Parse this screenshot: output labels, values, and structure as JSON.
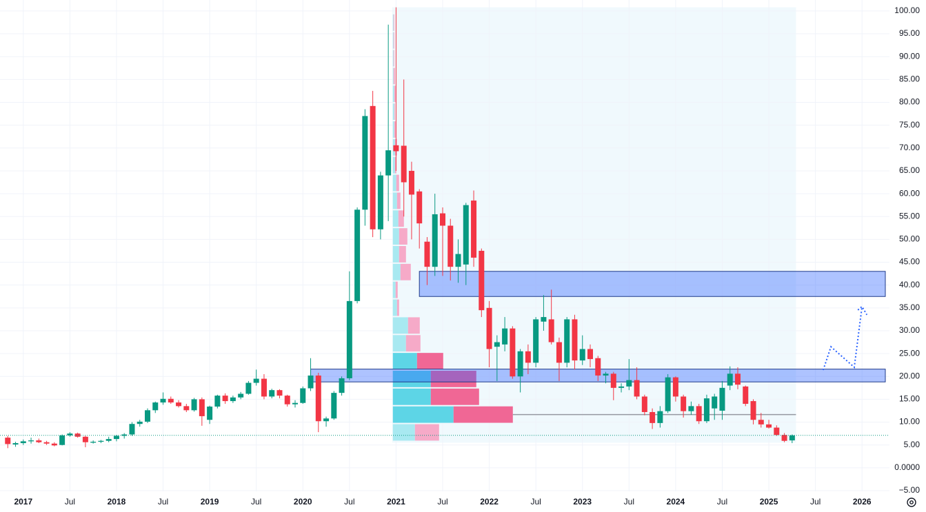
{
  "chart_data": {
    "type": "candlestick",
    "x": [
      "2016-11",
      "2016-12",
      "2017-01",
      "2017-02",
      "2017-03",
      "2017-04",
      "2017-05",
      "2017-06",
      "2017-07",
      "2017-08",
      "2017-09",
      "2017-10",
      "2017-11",
      "2017-12",
      "2018-01",
      "2018-02",
      "2018-03",
      "2018-04",
      "2018-05",
      "2018-06",
      "2018-07",
      "2018-08",
      "2018-09",
      "2018-10",
      "2018-11",
      "2018-12",
      "2019-01",
      "2019-02",
      "2019-03",
      "2019-04",
      "2019-05",
      "2019-06",
      "2019-07",
      "2019-08",
      "2019-09",
      "2019-10",
      "2019-11",
      "2019-12",
      "2020-01",
      "2020-02",
      "2020-03",
      "2020-04",
      "2020-05",
      "2020-06",
      "2020-07",
      "2020-08",
      "2020-09",
      "2020-10",
      "2020-11",
      "2020-12",
      "2021-01",
      "2021-02",
      "2021-03",
      "2021-04",
      "2021-05",
      "2021-06",
      "2021-07",
      "2021-08",
      "2021-09",
      "2021-10",
      "2021-11",
      "2021-12",
      "2022-01",
      "2022-02",
      "2022-03",
      "2022-04",
      "2022-05",
      "2022-06",
      "2022-07",
      "2022-08",
      "2022-09",
      "2022-10",
      "2022-11",
      "2022-12",
      "2023-01",
      "2023-02",
      "2023-03",
      "2023-04",
      "2023-05",
      "2023-06",
      "2023-07",
      "2023-08",
      "2023-09",
      "2023-10",
      "2023-11",
      "2023-12",
      "2024-01",
      "2024-02",
      "2024-03",
      "2024-04",
      "2024-05",
      "2024-06",
      "2024-07",
      "2024-08",
      "2024-09",
      "2024-10",
      "2024-11",
      "2024-12",
      "2025-01",
      "2025-02",
      "2025-03",
      "2025-04"
    ],
    "open": [
      6.6,
      5.1,
      5.4,
      5.8,
      6.0,
      5.6,
      5.3,
      5.0,
      7.1,
      7.5,
      6.8,
      5.5,
      5.7,
      5.9,
      6.3,
      7.0,
      7.3,
      9.6,
      10.1,
      12.6,
      14.3,
      15.1,
      14.3,
      13.5,
      12.6,
      15.0,
      10.5,
      13.4,
      15.8,
      14.6,
      15.4,
      16.2,
      18.6,
      19.5,
      15.6,
      17.0,
      15.8,
      13.9,
      14.2,
      17.4,
      20.2,
      10.2,
      10.8,
      16.4,
      19.6,
      36.5,
      56.5,
      79.2,
      52.2,
      64.0,
      70.6,
      70.5,
      65.0,
      60.5,
      49.5,
      44.0,
      55.7,
      53.0,
      44.0,
      44.5,
      58.5,
      47.5,
      35.0,
      26.5,
      27.0,
      30.5,
      20.0,
      25.5,
      23.0,
      32.0,
      32.5,
      27.5,
      23.0,
      32.5,
      23.5,
      26.0,
      24.0,
      20.2,
      20.6,
      17.5,
      17.8,
      19.2,
      15.6,
      12.2,
      9.8,
      12.4,
      19.8,
      15.6,
      12.4,
      13.5,
      10.2,
      13.0,
      12.5,
      18.0,
      20.6,
      17.8,
      14.6,
      10.5,
      9.5,
      8.8,
      7.2,
      6.0
    ],
    "high": [
      7.0,
      5.7,
      6.2,
      6.6,
      6.4,
      5.9,
      5.6,
      7.3,
      7.8,
      7.7,
      7.0,
      6.0,
      6.1,
      6.8,
      7.2,
      7.6,
      10.0,
      10.5,
      13.0,
      14.5,
      16.5,
      15.6,
      14.8,
      14.0,
      15.3,
      15.4,
      13.6,
      16.0,
      16.3,
      15.8,
      16.6,
      19.0,
      21.5,
      20.5,
      17.3,
      17.2,
      16.0,
      14.8,
      17.8,
      24.0,
      20.8,
      11.2,
      16.8,
      20.0,
      43.0,
      57.0,
      78.5,
      82.5,
      64.8,
      97.0,
      100.8,
      85.0,
      67.0,
      61.0,
      50.5,
      60.0,
      57.0,
      54.5,
      50.0,
      58.0,
      60.7,
      48.0,
      36.5,
      29.0,
      33.0,
      31.0,
      26.0,
      27.0,
      33.0,
      37.8,
      39.0,
      28.5,
      33.0,
      33.5,
      29.0,
      27.0,
      24.5,
      21.0,
      21.0,
      18.5,
      23.8,
      22.0,
      16.0,
      13.0,
      13.5,
      20.5,
      20.0,
      16.0,
      14.5,
      14.0,
      16.0,
      16.2,
      19.0,
      22.2,
      22.0,
      18.0,
      15.0,
      12.0,
      10.5,
      9.3,
      7.6,
      7.3
    ],
    "low": [
      4.3,
      4.6,
      5.0,
      5.3,
      5.4,
      5.0,
      4.7,
      4.9,
      6.8,
      6.6,
      4.5,
      5.3,
      5.4,
      5.6,
      5.8,
      6.4,
      7.0,
      9.0,
      9.8,
      12.0,
      13.8,
      14.0,
      13.2,
      12.2,
      12.3,
      9.2,
      9.6,
      13.0,
      14.0,
      14.2,
      15.0,
      16.0,
      18.0,
      15.0,
      15.2,
      15.2,
      13.4,
      13.2,
      14.0,
      16.8,
      7.8,
      9.0,
      10.5,
      15.8,
      19.2,
      36.0,
      53.0,
      50.5,
      50.0,
      54.0,
      65.0,
      55.0,
      50.0,
      48.0,
      40.0,
      42.0,
      42.0,
      41.0,
      40.5,
      40.0,
      44.0,
      33.0,
      22.0,
      19.0,
      25.5,
      19.5,
      16.5,
      20.5,
      22.0,
      30.0,
      27.0,
      19.0,
      22.0,
      21.5,
      22.5,
      22.0,
      19.0,
      18.5,
      14.8,
      16.5,
      17.0,
      15.0,
      11.5,
      8.5,
      8.8,
      12.0,
      14.5,
      11.0,
      11.6,
      9.6,
      9.8,
      10.5,
      10.5,
      17.0,
      17.2,
      13.5,
      9.5,
      8.8,
      8.6,
      7.0,
      5.6,
      5.4
    ],
    "close": [
      5.2,
      5.4,
      5.8,
      6.0,
      5.6,
      5.3,
      4.9,
      7.1,
      7.5,
      6.8,
      5.6,
      5.7,
      5.9,
      6.3,
      7.0,
      7.3,
      9.6,
      10.1,
      12.6,
      14.3,
      15.1,
      14.3,
      13.5,
      12.6,
      15.0,
      11.3,
      13.4,
      15.8,
      14.6,
      15.4,
      16.2,
      18.6,
      19.5,
      15.6,
      17.0,
      15.8,
      13.9,
      14.2,
      17.4,
      20.2,
      10.2,
      10.8,
      16.4,
      19.6,
      36.5,
      56.5,
      77.0,
      52.2,
      64.0,
      69.5,
      69.3,
      62.5,
      59.8,
      53.5,
      44.0,
      55.5,
      53.0,
      44.0,
      46.8,
      57.5,
      46.0,
      34.5,
      26.0,
      27.5,
      30.5,
      20.0,
      25.5,
      23.0,
      32.5,
      33.0,
      27.5,
      23.0,
      32.5,
      23.5,
      26.0,
      23.8,
      20.2,
      20.6,
      17.5,
      17.8,
      19.2,
      15.6,
      12.2,
      9.8,
      12.4,
      19.8,
      15.6,
      12.4,
      13.5,
      10.2,
      15.2,
      15.6,
      17.5,
      20.6,
      18.2,
      14.0,
      10.5,
      9.5,
      8.8,
      7.2,
      5.9,
      7.1
    ],
    "up_color": "#089981",
    "down_color": "#f23645",
    "xlim": [
      "2016-10",
      "2026-04"
    ],
    "xticks": [
      {
        "value": "2017-01",
        "label": "2017"
      },
      {
        "value": "2017-07",
        "label": "Jul"
      },
      {
        "value": "2018-01",
        "label": "2018"
      },
      {
        "value": "2018-07",
        "label": "Jul"
      },
      {
        "value": "2019-01",
        "label": "2019"
      },
      {
        "value": "2019-07",
        "label": "Jul"
      },
      {
        "value": "2020-01",
        "label": "2020"
      },
      {
        "value": "2020-07",
        "label": "Jul"
      },
      {
        "value": "2021-01",
        "label": "2021"
      },
      {
        "value": "2021-07",
        "label": "Jul"
      },
      {
        "value": "2022-01",
        "label": "2022"
      },
      {
        "value": "2022-07",
        "label": "Jul"
      },
      {
        "value": "2023-01",
        "label": "2023"
      },
      {
        "value": "2023-07",
        "label": "Jul"
      },
      {
        "value": "2024-01",
        "label": "2024"
      },
      {
        "value": "2024-07",
        "label": "Jul"
      },
      {
        "value": "2025-01",
        "label": "2025"
      },
      {
        "value": "2025-07",
        "label": "Jul"
      },
      {
        "value": "2026-01",
        "label": "2026"
      }
    ],
    "ylim": [
      -5.15,
      102.4
    ],
    "yticks": [
      {
        "value": 100,
        "label": "100.00"
      },
      {
        "value": 95,
        "label": "95.00"
      },
      {
        "value": 90,
        "label": "90.00"
      },
      {
        "value": 85,
        "label": "85.00"
      },
      {
        "value": 80,
        "label": "80.00"
      },
      {
        "value": 75,
        "label": "75.00"
      },
      {
        "value": 70,
        "label": "70.00"
      },
      {
        "value": 65,
        "label": "65.00"
      },
      {
        "value": 60,
        "label": "60.00"
      },
      {
        "value": 55,
        "label": "55.00"
      },
      {
        "value": 50,
        "label": "50.00"
      },
      {
        "value": 45,
        "label": "45.00"
      },
      {
        "value": 40,
        "label": "40.00"
      },
      {
        "value": 35,
        "label": "35.00"
      },
      {
        "value": 30,
        "label": "30.00"
      },
      {
        "value": 25,
        "label": "25.00"
      },
      {
        "value": 20,
        "label": "20.00"
      },
      {
        "value": 15,
        "label": "15.00"
      },
      {
        "value": 10,
        "label": "10.00"
      },
      {
        "value": 5,
        "label": "5.00"
      },
      {
        "value": 0,
        "label": "0.0000"
      },
      {
        "value": -5,
        "label": "−5.00"
      }
    ],
    "grid": true,
    "grid_color": "#f0f3fa",
    "range_box": {
      "start": "2021-01",
      "end": "2025-04",
      "low": 5.5,
      "high": 100.8,
      "color": "#e3f4fb"
    },
    "volume_profile": {
      "buy_color": "#5dd5e6",
      "sell_color": "#f06795",
      "buy_light_color": "#a8e9f1",
      "sell_light_color": "#f6aac8",
      "poc_color": "#9598a1",
      "value_area": [
        9.7,
        25.3
      ],
      "rows": [
        {
          "low": 5.8,
          "high": 9.7,
          "buy": 32,
          "sell": 35
        },
        {
          "low": 9.7,
          "high": 13.6,
          "buy": 88,
          "sell": 86
        },
        {
          "low": 13.6,
          "high": 17.5,
          "buy": 55,
          "sell": 70
        },
        {
          "low": 17.5,
          "high": 21.4,
          "buy": 55,
          "sell": 66
        },
        {
          "low": 21.4,
          "high": 25.3,
          "buy": 35,
          "sell": 38
        },
        {
          "low": 25.3,
          "high": 29.2,
          "buy": 19,
          "sell": 21
        },
        {
          "low": 29.2,
          "high": 33.1,
          "buy": 22,
          "sell": 17
        },
        {
          "low": 33.1,
          "high": 37.0,
          "buy": 6,
          "sell": 3
        },
        {
          "low": 37.0,
          "high": 40.9,
          "buy": 4,
          "sell": 3
        },
        {
          "low": 40.9,
          "high": 44.8,
          "buy": 11,
          "sell": 15
        },
        {
          "low": 44.8,
          "high": 48.7,
          "buy": 9,
          "sell": 10
        },
        {
          "low": 48.7,
          "high": 52.6,
          "buy": 9,
          "sell": 12
        },
        {
          "low": 52.6,
          "high": 56.5,
          "buy": 8,
          "sell": 8
        },
        {
          "low": 56.5,
          "high": 60.4,
          "buy": 6,
          "sell": 5
        },
        {
          "low": 60.4,
          "high": 64.3,
          "buy": 5,
          "sell": 4
        },
        {
          "low": 64.3,
          "high": 68.2,
          "buy": 3,
          "sell": 2
        },
        {
          "low": 68.2,
          "high": 72.1,
          "buy": 3,
          "sell": 3
        },
        {
          "low": 72.1,
          "high": 76.0,
          "buy": 2,
          "sell": 2
        },
        {
          "low": 76.0,
          "high": 79.9,
          "buy": 2,
          "sell": 1
        },
        {
          "low": 79.9,
          "high": 83.8,
          "buy": 2,
          "sell": 2
        },
        {
          "low": 83.8,
          "high": 87.7,
          "buy": 1,
          "sell": 2
        },
        {
          "low": 87.7,
          "high": 91.6,
          "buy": 1,
          "sell": 1
        },
        {
          "low": 91.6,
          "high": 95.5,
          "buy": 1,
          "sell": 1
        },
        {
          "low": 95.5,
          "high": 99.4,
          "buy": 1,
          "sell": 1
        }
      ]
    },
    "zones": [
      {
        "start": "2021-04",
        "low": 37.5,
        "high": 43.0
      },
      {
        "start": "2020-02",
        "low": 18.8,
        "high": 21.6
      }
    ],
    "zone_fill": "#2962ff",
    "zone_border": "#1e3a8a",
    "price_line_color": "#089981",
    "forecast": {
      "color": "#2962ff",
      "points": [
        [
          "2025-08",
          21.4
        ],
        [
          "2025-09",
          26.5
        ],
        [
          "2025-12",
          22.0
        ],
        [
          "2026-01",
          35.3
        ]
      ]
    }
  }
}
